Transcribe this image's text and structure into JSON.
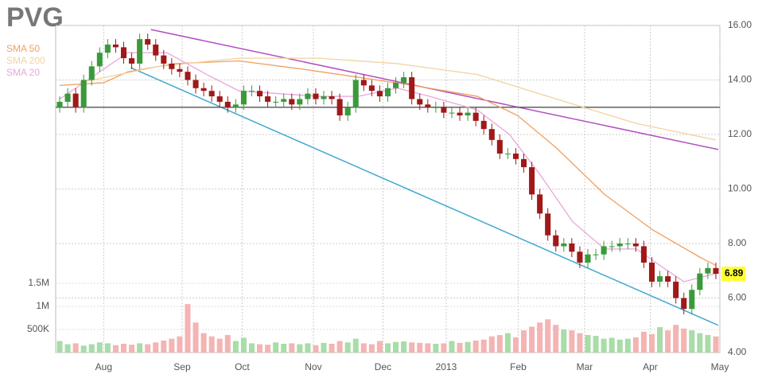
{
  "chart_data": {
    "type": "candlestick",
    "title": "PVG",
    "last_price": 6.89,
    "xlim": [
      -0.5,
      82.5
    ],
    "xticks": [
      {
        "value": 5.5,
        "label": "Aug"
      },
      {
        "value": 15.3,
        "label": "Sep"
      },
      {
        "value": 22.8,
        "label": "Oct"
      },
      {
        "value": 31.7,
        "label": "Nov"
      },
      {
        "value": 40.4,
        "label": "Dec"
      },
      {
        "value": 48.3,
        "label": "2013"
      },
      {
        "value": 57.3,
        "label": "Feb"
      },
      {
        "value": 65.6,
        "label": "Mar"
      },
      {
        "value": 73.8,
        "label": "Apr"
      },
      {
        "value": 82.5,
        "label": "May"
      }
    ],
    "ylim": [
      4,
      16
    ],
    "yticks": [
      {
        "value": 16,
        "label": "16.00"
      },
      {
        "value": 14,
        "label": "14.00"
      },
      {
        "value": 12,
        "label": "12.00"
      },
      {
        "value": 10,
        "label": "10.00"
      },
      {
        "value": 8,
        "label": "8.00"
      },
      {
        "value": 6,
        "label": "6.00"
      },
      {
        "value": 4,
        "label": "4.00"
      }
    ],
    "y2lim": [
      0,
      1500000
    ],
    "y2ticks": [
      {
        "value": 1500000,
        "label": "1.5M"
      },
      {
        "value": 1000000,
        "label": "1M"
      },
      {
        "value": 500000,
        "label": "500K"
      }
    ],
    "grid": true,
    "up_color": "#3a9a3a",
    "down_color": "#a01818",
    "volume_up_color": "#a8dca8",
    "volume_down_color": "#f4b4b4",
    "open": [
      13.0,
      13.2,
      13.5,
      13.0,
      14.0,
      14.5,
      15.0,
      15.3,
      15.2,
      14.8,
      14.6,
      15.5,
      15.3,
      14.9,
      14.6,
      14.4,
      14.3,
      14.0,
      13.7,
      13.6,
      13.4,
      13.2,
      13.0,
      13.1,
      13.6,
      13.6,
      13.4,
      13.2,
      13.2,
      13.3,
      13.1,
      13.3,
      13.5,
      13.3,
      13.4,
      13.3,
      12.7,
      13.0,
      14.0,
      13.8,
      13.6,
      13.4,
      13.7,
      13.9,
      14.1,
      13.3,
      13.1,
      13.0,
      13.0,
      12.8,
      12.8,
      12.7,
      12.8,
      12.5,
      12.2,
      11.8,
      11.3,
      11.3,
      11.1,
      10.8,
      9.8,
      9.1,
      8.3,
      7.9,
      8.0,
      7.7,
      7.3,
      7.6,
      7.6,
      7.9,
      7.9,
      8.0,
      8.0,
      7.9,
      7.3,
      6.6,
      6.8,
      6.6,
      6.0,
      5.6,
      6.3,
      6.9,
      7.1
    ],
    "high": [
      13.4,
      13.7,
      13.7,
      14.2,
      14.7,
      15.2,
      15.5,
      15.5,
      15.4,
      15.0,
      15.7,
      15.7,
      15.5,
      15.1,
      14.8,
      14.6,
      14.5,
      14.2,
      13.9,
      13.8,
      13.6,
      13.4,
      13.3,
      13.8,
      13.8,
      13.8,
      13.6,
      13.4,
      13.5,
      13.5,
      13.5,
      13.7,
      13.7,
      13.6,
      13.6,
      13.5,
      13.2,
      14.2,
      14.2,
      14.0,
      13.8,
      13.9,
      14.1,
      14.3,
      14.3,
      13.5,
      13.3,
      13.2,
      13.2,
      13.0,
      13.0,
      13.0,
      13.0,
      12.7,
      12.4,
      12.0,
      11.5,
      11.5,
      11.3,
      11.0,
      10.0,
      9.3,
      8.5,
      8.2,
      8.2,
      7.9,
      7.8,
      7.8,
      8.1,
      8.1,
      8.2,
      8.2,
      8.2,
      8.1,
      7.5,
      7.0,
      7.0,
      6.8,
      6.2,
      6.5,
      7.1,
      7.3,
      7.3
    ],
    "low": [
      12.8,
      13.0,
      12.8,
      12.8,
      13.8,
      14.3,
      14.8,
      15.0,
      14.6,
      14.4,
      14.4,
      15.1,
      14.7,
      14.4,
      14.2,
      14.1,
      13.8,
      13.5,
      13.4,
      13.2,
      13.0,
      12.8,
      12.8,
      12.9,
      13.4,
      13.2,
      13.0,
      13.0,
      13.0,
      12.9,
      12.9,
      13.1,
      13.1,
      13.1,
      13.1,
      12.5,
      12.5,
      12.8,
      13.6,
      13.4,
      13.2,
      13.2,
      13.5,
      13.7,
      13.1,
      12.9,
      12.8,
      12.8,
      12.6,
      12.6,
      12.5,
      12.5,
      12.3,
      12.0,
      11.6,
      11.1,
      11.1,
      10.9,
      10.6,
      9.6,
      8.9,
      8.1,
      7.7,
      7.7,
      7.5,
      7.1,
      7.1,
      7.4,
      7.4,
      7.7,
      7.7,
      7.8,
      7.7,
      7.1,
      6.4,
      6.4,
      6.4,
      5.8,
      5.4,
      5.4,
      6.1,
      6.7,
      6.69
    ],
    "close": [
      13.2,
      13.5,
      13.0,
      14.0,
      14.5,
      15.0,
      15.3,
      15.2,
      14.8,
      14.6,
      15.5,
      15.3,
      14.9,
      14.6,
      14.4,
      14.3,
      14.0,
      13.7,
      13.6,
      13.4,
      13.2,
      13.0,
      13.1,
      13.6,
      13.6,
      13.4,
      13.2,
      13.2,
      13.3,
      13.1,
      13.3,
      13.5,
      13.3,
      13.4,
      13.3,
      12.7,
      13.0,
      14.0,
      13.8,
      13.6,
      13.4,
      13.7,
      13.9,
      14.1,
      13.3,
      13.1,
      13.0,
      13.0,
      12.8,
      12.8,
      12.7,
      12.8,
      12.5,
      12.2,
      11.8,
      11.3,
      11.3,
      11.1,
      10.8,
      9.8,
      9.1,
      8.3,
      7.9,
      8.0,
      7.7,
      7.3,
      7.6,
      7.6,
      7.9,
      7.9,
      8.0,
      8.0,
      7.9,
      7.3,
      6.6,
      6.8,
      6.6,
      6.0,
      5.6,
      6.3,
      6.9,
      7.1,
      6.89
    ],
    "volume": [
      250000,
      180000,
      200000,
      150000,
      180000,
      220000,
      200000,
      160000,
      190000,
      170000,
      200000,
      180000,
      220000,
      260000,
      300000,
      350000,
      1050000,
      650000,
      420000,
      350000,
      300000,
      380000,
      250000,
      320000,
      200000,
      180000,
      170000,
      220000,
      190000,
      200000,
      180000,
      200000,
      160000,
      210000,
      190000,
      250000,
      220000,
      300000,
      200000,
      180000,
      250000,
      200000,
      230000,
      240000,
      220000,
      210000,
      200000,
      190000,
      200000,
      250000,
      210000,
      230000,
      260000,
      280000,
      350000,
      380000,
      420000,
      330000,
      480000,
      560000,
      650000,
      720000,
      600000,
      500000,
      480000,
      420000,
      380000,
      360000,
      300000,
      320000,
      280000,
      300000,
      330000,
      450000,
      400000,
      550000,
      480000,
      600000,
      520000,
      480000,
      420000,
      380000,
      350000
    ],
    "series": [
      {
        "name": "SMA 50",
        "color": "#f0a060",
        "x": [
          0,
          5.5,
          8.5,
          14.4,
          22.4,
          30.3,
          37.3,
          44.2,
          52.2,
          57.2,
          62.1,
          68.1,
          74.1,
          80,
          82
        ],
        "values": [
          13.8,
          13.9,
          14.3,
          14.6,
          14.7,
          14.4,
          14.1,
          13.8,
          13.4,
          12.7,
          11.5,
          9.8,
          8.5,
          7.5,
          7.2
        ]
      },
      {
        "name": "SMA 200",
        "color": "#f2d2a0",
        "x": [
          2.5,
          12.4,
          22.4,
          32.3,
          42.2,
          52.2,
          62.1,
          72.1,
          82
        ],
        "values": [
          13.9,
          14.5,
          14.8,
          14.8,
          14.6,
          14.2,
          13.3,
          12.4,
          11.8
        ]
      },
      {
        "name": "SMA 20",
        "color": "#eaa6dc",
        "x": [
          0,
          4.5,
          8.5,
          13.4,
          18.4,
          22.4,
          32.3,
          37.3,
          42.2,
          46.2,
          52.2,
          56.2,
          60.1,
          64.1,
          68.1,
          72.1,
          75,
          78,
          82
        ],
        "values": [
          13.3,
          14.2,
          15.0,
          15.0,
          14.2,
          13.6,
          13.4,
          13.4,
          13.7,
          13.4,
          12.9,
          12.0,
          10.5,
          8.8,
          7.8,
          7.8,
          7.2,
          6.6,
          6.9
        ]
      }
    ],
    "trendlines": [
      {
        "color": "#b050c0",
        "x": [
          11.4,
          82.3
        ],
        "values": [
          15.85,
          11.45
        ]
      },
      {
        "color": "#40a8d0",
        "x": [
          8.9,
          82.3
        ],
        "values": [
          14.45,
          5.0
        ]
      },
      {
        "color": "#606060",
        "x": [
          -0.5,
          82.5
        ],
        "values": [
          13.0,
          13.0
        ]
      }
    ]
  }
}
